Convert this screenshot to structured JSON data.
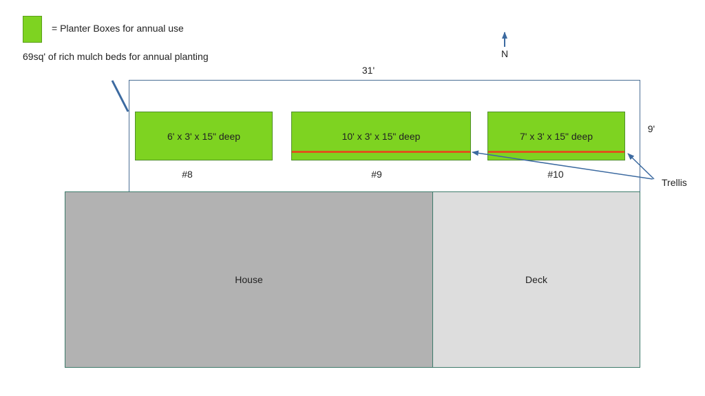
{
  "legend": {
    "swatch_color": "#7ed321",
    "label": "= Planter Boxes for annual use"
  },
  "note": "69sq' of rich mulch beds for annual planting",
  "compass": {
    "label": "N",
    "icon": "north-arrow-icon"
  },
  "yard": {
    "width_label": "31'",
    "depth_label": "9'"
  },
  "planters": [
    {
      "size": "6' x 3' x 15\" deep",
      "number": "#8",
      "trellis": false
    },
    {
      "size": "10' x 3' x 15\" deep",
      "number": "#9",
      "trellis": true
    },
    {
      "size": "7' x 3' x 15\" deep",
      "number": "#10",
      "trellis": true
    }
  ],
  "trellis_label": "Trellis",
  "trellis_color": "#e0531a",
  "house": {
    "label": "House",
    "color": "#b2b2b2"
  },
  "deck": {
    "label": "Deck",
    "color": "#dddddd"
  }
}
